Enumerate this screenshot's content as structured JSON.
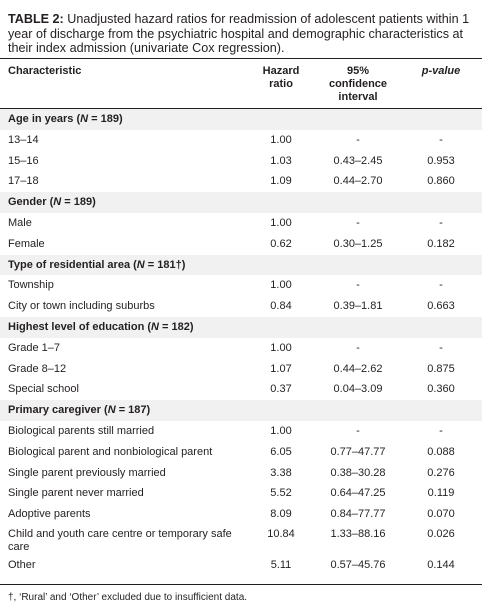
{
  "caption": {
    "lead": "TABLE 2:",
    "text": " Unadjusted hazard ratios for readmission of adolescent patients within 1 year of discharge from the psychiatric hospital and demographic characteristics at their index admission (univariate Cox regression)."
  },
  "header": {
    "characteristic": "Characteristic",
    "hazard_ratio_line1": "Hazard",
    "hazard_ratio_line2": "ratio",
    "ci_line1": "95%",
    "ci_line2": "confidence",
    "ci_line3": "interval",
    "pvalue": "p-value"
  },
  "rows": [
    {
      "type": "group",
      "label": "Age in years (N = 189)"
    },
    {
      "type": "data",
      "label": "13–14",
      "hr": "1.00",
      "ci": "-",
      "p": "-"
    },
    {
      "type": "data",
      "label": "15–16",
      "hr": "1.03",
      "ci": "0.43–2.45",
      "p": "0.953"
    },
    {
      "type": "data",
      "label": "17–18",
      "hr": "1.09",
      "ci": "0.44–2.70",
      "p": "0.860"
    },
    {
      "type": "group",
      "label": "Gender (N = 189)"
    },
    {
      "type": "data",
      "label": "Male",
      "hr": "1.00",
      "ci": "-",
      "p": "-"
    },
    {
      "type": "data",
      "label": "Female",
      "hr": "0.62",
      "ci": "0.30–1.25",
      "p": "0.182"
    },
    {
      "type": "group",
      "label": "Type of residential area (N = 181†)"
    },
    {
      "type": "data",
      "label": "Township",
      "hr": "1.00",
      "ci": "-",
      "p": "-"
    },
    {
      "type": "data",
      "label": "City or town including suburbs",
      "hr": "0.84",
      "ci": "0.39–1.81",
      "p": "0.663"
    },
    {
      "type": "group",
      "label": "Highest level of education (N = 182)"
    },
    {
      "type": "data",
      "label": "Grade 1–7",
      "hr": "1.00",
      "ci": "-",
      "p": "-"
    },
    {
      "type": "data",
      "label": "Grade 8–12",
      "hr": "1.07",
      "ci": "0.44–2.62",
      "p": "0.875"
    },
    {
      "type": "data",
      "label": "Special school",
      "hr": "0.37",
      "ci": "0.04–3.09",
      "p": "0.360"
    },
    {
      "type": "group",
      "label": "Primary caregiver (N = 187)"
    },
    {
      "type": "data",
      "label": "Biological parents still married",
      "hr": "1.00",
      "ci": "-",
      "p": "-"
    },
    {
      "type": "data",
      "label": "Biological parent and nonbiological parent",
      "hr": "6.05",
      "ci": "0.77–47.77",
      "p": "0.088"
    },
    {
      "type": "data",
      "label": "Single parent previously married",
      "hr": "3.38",
      "ci": "0.38–30.28",
      "p": "0.276"
    },
    {
      "type": "data",
      "label": "Single parent never married",
      "hr": "5.52",
      "ci": "0.64–47.25",
      "p": "0.119"
    },
    {
      "type": "data",
      "label": "Adoptive parents",
      "hr": "8.09",
      "ci": "0.84–77.77",
      "p": "0.070"
    },
    {
      "type": "data",
      "label": "Child and youth care centre or temporary safe care",
      "hr": "10.84",
      "ci": "1.33–88.16",
      "p": "0.026",
      "tall": true
    },
    {
      "type": "data",
      "label": "Other",
      "hr": "5.11",
      "ci": "0.57–45.76",
      "p": "0.144"
    }
  ],
  "footnote": "†, ‘Rural’ and ‘Other’ excluded due to insufficient data."
}
